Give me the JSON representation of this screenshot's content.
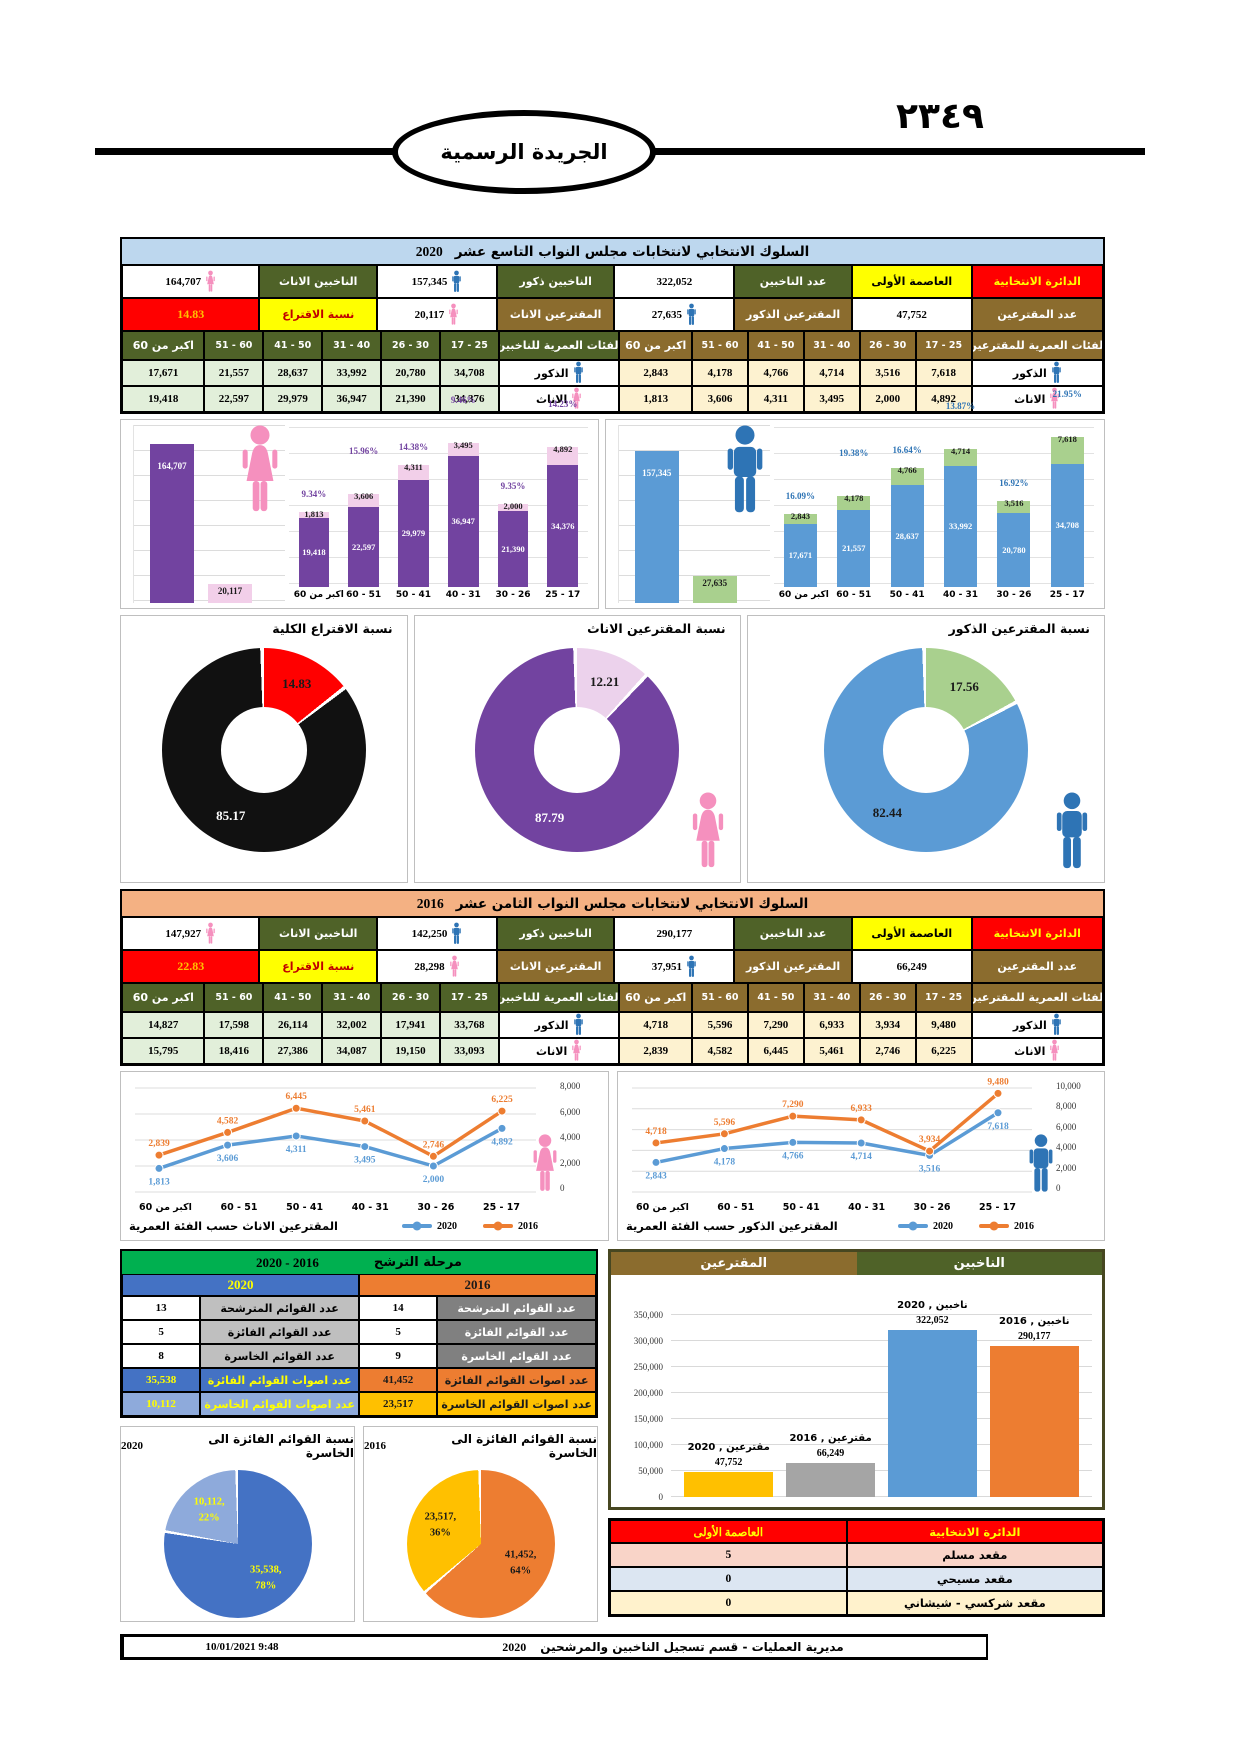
{
  "masthead": {
    "page_number": "٢٣٤٩",
    "title": "الجريدة الرسمية"
  },
  "labels": {
    "district": "الدائرة الانتخابية",
    "district_value": "العاصمة الأولى",
    "voters": "عدد الناخبين",
    "voters_male": "الناخبين ذكور",
    "voters_female": "الناخبين الاناث",
    "turnout": "عدد المقترعين",
    "turnout_male": "المقترعين الذكور",
    "turnout_female": "المقترعين الاناث",
    "rate": "نسبة الاقتراع",
    "voters_ages": "الفئات العمرية للناخبين",
    "turnout_ages": "الفئات العمرية للمقترعين",
    "males": "الذكور",
    "females": "الاناث"
  },
  "age_groups": [
    "اكبر من 60",
    "60 - 51",
    "50 - 41",
    "40 - 31",
    "30 - 26",
    "25 - 17"
  ],
  "s2020": {
    "title": "السلوك الانتخابي لانتخابات مجلس النواب التاسع عشر",
    "year": "2020",
    "voters": "322,052",
    "voters_male": "157,345",
    "voters_female": "164,707",
    "turnout": "47,752",
    "turnout_male": "27,635",
    "turnout_female": "20,117",
    "rate": "14.83",
    "voters_male_ages": [
      "17,671",
      "21,557",
      "28,637",
      "33,992",
      "20,780",
      "34,708"
    ],
    "voters_female_ages": [
      "19,418",
      "22,597",
      "29,979",
      "36,947",
      "21,390",
      "34,376"
    ],
    "turnout_male_ages": [
      "2,843",
      "4,178",
      "4,766",
      "4,714",
      "3,516",
      "7,618"
    ],
    "turnout_female_ages": [
      "1,813",
      "3,606",
      "4,311",
      "3,495",
      "2,000",
      "4,892"
    ]
  },
  "s2016": {
    "title": "السلوك الانتخابي لانتخابات مجلس النواب الثامن عشر",
    "year": "2016",
    "voters": "290,177",
    "voters_male": "142,250",
    "voters_female": "147,927",
    "turnout": "66,249",
    "turnout_male": "37,951",
    "turnout_female": "28,298",
    "rate": "22.83",
    "voters_male_ages": [
      "14,827",
      "17,598",
      "26,114",
      "32,002",
      "17,941",
      "33,768"
    ],
    "voters_female_ages": [
      "15,795",
      "18,416",
      "27,386",
      "34,087",
      "19,150",
      "33,093"
    ],
    "turnout_male_ages": [
      "4,718",
      "5,596",
      "7,290",
      "6,933",
      "3,934",
      "9,480"
    ],
    "turnout_female_ages": [
      "2,839",
      "4,582",
      "6,445",
      "5,461",
      "2,746",
      "6,225"
    ]
  },
  "candidacy": {
    "title": "مرحلة الترشح",
    "range": "2020 - 2016",
    "col_2020": "2020",
    "col_2016": "2016",
    "rows": [
      {
        "label": "عدد القوائم المترشحة",
        "v2020": "13",
        "v2016": "14"
      },
      {
        "label": "عدد القوائم الفائزة",
        "v2020": "5",
        "v2016": "5"
      },
      {
        "label": "عدد القوائم الخاسرة",
        "v2020": "8",
        "v2016": "9"
      },
      {
        "label": "عدد اصوات القوائم الفائزة",
        "v2020": "35,538",
        "v2016": "41,452"
      },
      {
        "label": "عدد اصوات القوائم الخاسرة",
        "v2020": "10,112",
        "v2016": "23,517"
      }
    ]
  },
  "turnout_chart": {
    "header_left": "المقترعين",
    "header_right": "الناخبين"
  },
  "seats": {
    "header_label": "الدائرة الانتخابية",
    "header_value": "العاصمة الأولى",
    "rows": [
      {
        "label": "مقعد مسلم",
        "value": "5"
      },
      {
        "label": "مقعد مسيحي",
        "value": "0"
      },
      {
        "label": "مقعد شركسي - شيشاني",
        "value": "0"
      }
    ]
  },
  "footer": {
    "datetime": "10/01/2021 9:48",
    "source": "مديرية العمليات - قسم تسجيل الناخبين والمرشحين",
    "year": "2020"
  },
  "chart_data": [
    {
      "id": "female_totals_2020",
      "type": "bar",
      "variant": "totals",
      "categories": [
        "الناخبين الاناث",
        "المقترعين الاناث"
      ],
      "values": [
        164707,
        20117
      ],
      "colors": [
        "#7243a0",
        "#f2cfe9"
      ],
      "label_colors": [
        "#ffffff",
        "#1a1a1a"
      ],
      "ylim": [
        0,
        180000
      ]
    },
    {
      "id": "female_by_age_2020",
      "type": "bar",
      "variant": "stacked",
      "categories": [
        "اكبر من 60",
        "60 - 51",
        "50 - 41",
        "40 - 31",
        "30 - 26",
        "25 - 17"
      ],
      "series": [
        {
          "name": "الناخبين الاناث",
          "values": [
            19418,
            22597,
            29979,
            36947,
            21390,
            34376
          ],
          "color": "#7243a0"
        },
        {
          "name": "المقترعين الاناث",
          "values": [
            1813,
            3606,
            4311,
            3495,
            2000,
            4892
          ],
          "color": "#f2cfe9"
        }
      ],
      "pct_labels": [
        "9.34%",
        "15.96%",
        "14.38%",
        "9.46%",
        "9.35%",
        "14.23%"
      ],
      "pct_color": "#7243a0",
      "ylim": [
        0,
        45000
      ]
    },
    {
      "id": "male_totals_2020",
      "type": "bar",
      "variant": "totals",
      "categories": [
        "الناخبين ذكور",
        "المقترعين الذكور"
      ],
      "values": [
        157345,
        27635
      ],
      "colors": [
        "#5b9bd5",
        "#a9d08e"
      ],
      "label_colors": [
        "#ffffff",
        "#1a1a1a"
      ],
      "ylim": [
        0,
        180000
      ]
    },
    {
      "id": "male_by_age_2020",
      "type": "bar",
      "variant": "stacked",
      "categories": [
        "اكبر من 60",
        "60 - 51",
        "50 - 41",
        "40 - 31",
        "30 - 26",
        "25 - 17"
      ],
      "series": [
        {
          "name": "الناخبين ذكور",
          "values": [
            17671,
            21557,
            28637,
            33992,
            20780,
            34708
          ],
          "color": "#5b9bd5"
        },
        {
          "name": "المقترعين الذكور",
          "values": [
            2843,
            4178,
            4766,
            4714,
            3516,
            7618
          ],
          "color": "#a9d08e"
        }
      ],
      "pct_labels": [
        "16.09%",
        "19.38%",
        "16.64%",
        "13.87%",
        "16.92%",
        "21.95%"
      ],
      "pct_color": "#2e74b5",
      "ylim": [
        0,
        45000
      ]
    },
    {
      "id": "donut_total",
      "type": "pie",
      "hole": 0.42,
      "title": "نسبة الاقتراع الكلية",
      "values": [
        14.83,
        85.17
      ],
      "labels": [
        "14.83",
        "85.17"
      ],
      "colors": [
        "#ff0000",
        "#111111"
      ],
      "label_colors": [
        "#1a1a1a",
        "#ffffff"
      ]
    },
    {
      "id": "donut_female",
      "type": "pie",
      "hole": 0.42,
      "title": "نسبة المقترعين الاناث",
      "values": [
        12.21,
        87.79
      ],
      "labels": [
        "12.21",
        "87.79"
      ],
      "colors": [
        "#ecd2ec",
        "#7243a0"
      ],
      "label_colors": [
        "#1a1a1a",
        "#ffffff"
      ]
    },
    {
      "id": "donut_male",
      "type": "pie",
      "hole": 0.42,
      "title": "نسبة المقترعين الذكور",
      "values": [
        17.56,
        82.44
      ],
      "labels": [
        "17.56",
        "82.44"
      ],
      "colors": [
        "#a9d08e",
        "#5b9bd5"
      ],
      "label_colors": [
        "#1a1a1a",
        "#1a1a1a"
      ]
    },
    {
      "id": "line_female",
      "type": "line",
      "title": "المقترعين الاناث حسب الفئة العمرية",
      "categories": [
        "اكبر من 60",
        "60 - 51",
        "50 - 41",
        "40 - 31",
        "30 - 26",
        "25 - 17"
      ],
      "series": [
        {
          "name": "2020",
          "values": [
            1813,
            3606,
            4311,
            3495,
            2000,
            4892
          ],
          "color": "#5b9bd5"
        },
        {
          "name": "2016",
          "values": [
            2839,
            4582,
            6445,
            5461,
            2746,
            6225
          ],
          "color": "#ed7d31"
        }
      ],
      "ylim": [
        0,
        8000
      ],
      "yticks": [
        0,
        2000,
        4000,
        6000,
        8000
      ],
      "legend_position": "bottom"
    },
    {
      "id": "line_male",
      "type": "line",
      "title": "المقترعين الذكور حسب الفئة العمرية",
      "categories": [
        "اكبر من 60",
        "60 - 51",
        "50 - 41",
        "40 - 31",
        "30 - 26",
        "25 - 17"
      ],
      "series": [
        {
          "name": "2020",
          "values": [
            2843,
            4178,
            4766,
            4714,
            3516,
            7618
          ],
          "color": "#5b9bd5"
        },
        {
          "name": "2016",
          "values": [
            4718,
            5596,
            7290,
            6933,
            3934,
            9480
          ],
          "color": "#ed7d31"
        }
      ],
      "ylim": [
        0,
        10000
      ],
      "yticks": [
        0,
        2000,
        4000,
        6000,
        8000,
        10000
      ],
      "legend_position": "bottom"
    },
    {
      "id": "voters_vs_turnout",
      "type": "bar",
      "variant": "grouped",
      "categories": [
        "مقترعين , 2020",
        "مقترعين , 2016",
        "ناخبين , 2020",
        "ناخبين , 2016"
      ],
      "values": [
        47752,
        66249,
        322052,
        290177
      ],
      "colors": [
        "#ffc000",
        "#a5a5a5",
        "#5b9bd5",
        "#ed7d31"
      ],
      "ylim": [
        0,
        350000
      ],
      "yticks": [
        0,
        50000,
        100000,
        150000,
        200000,
        250000,
        300000,
        350000
      ]
    },
    {
      "id": "pie_lists_2020",
      "type": "pie",
      "hole": 0,
      "title": "نسبة القوائم الفائزة الى الخاسرة",
      "year": "2020",
      "values": [
        78,
        22
      ],
      "labels": [
        "35,538,\n78%",
        "10,112,\n22%"
      ],
      "colors": [
        "#4472c4",
        "#8eaadb"
      ],
      "label_colors": [
        "#ffff00",
        "#ffff00"
      ]
    },
    {
      "id": "pie_lists_2016",
      "type": "pie",
      "hole": 0,
      "title": "نسبة القوائم الفائزة الى الخاسرة",
      "year": "2016",
      "values": [
        64,
        36
      ],
      "labels": [
        "41,452,\n64%",
        "23,517,\n36%"
      ],
      "colors": [
        "#ed7d31",
        "#ffc000"
      ],
      "label_colors": [
        "#1a1a1a",
        "#1a1a1a"
      ]
    }
  ]
}
